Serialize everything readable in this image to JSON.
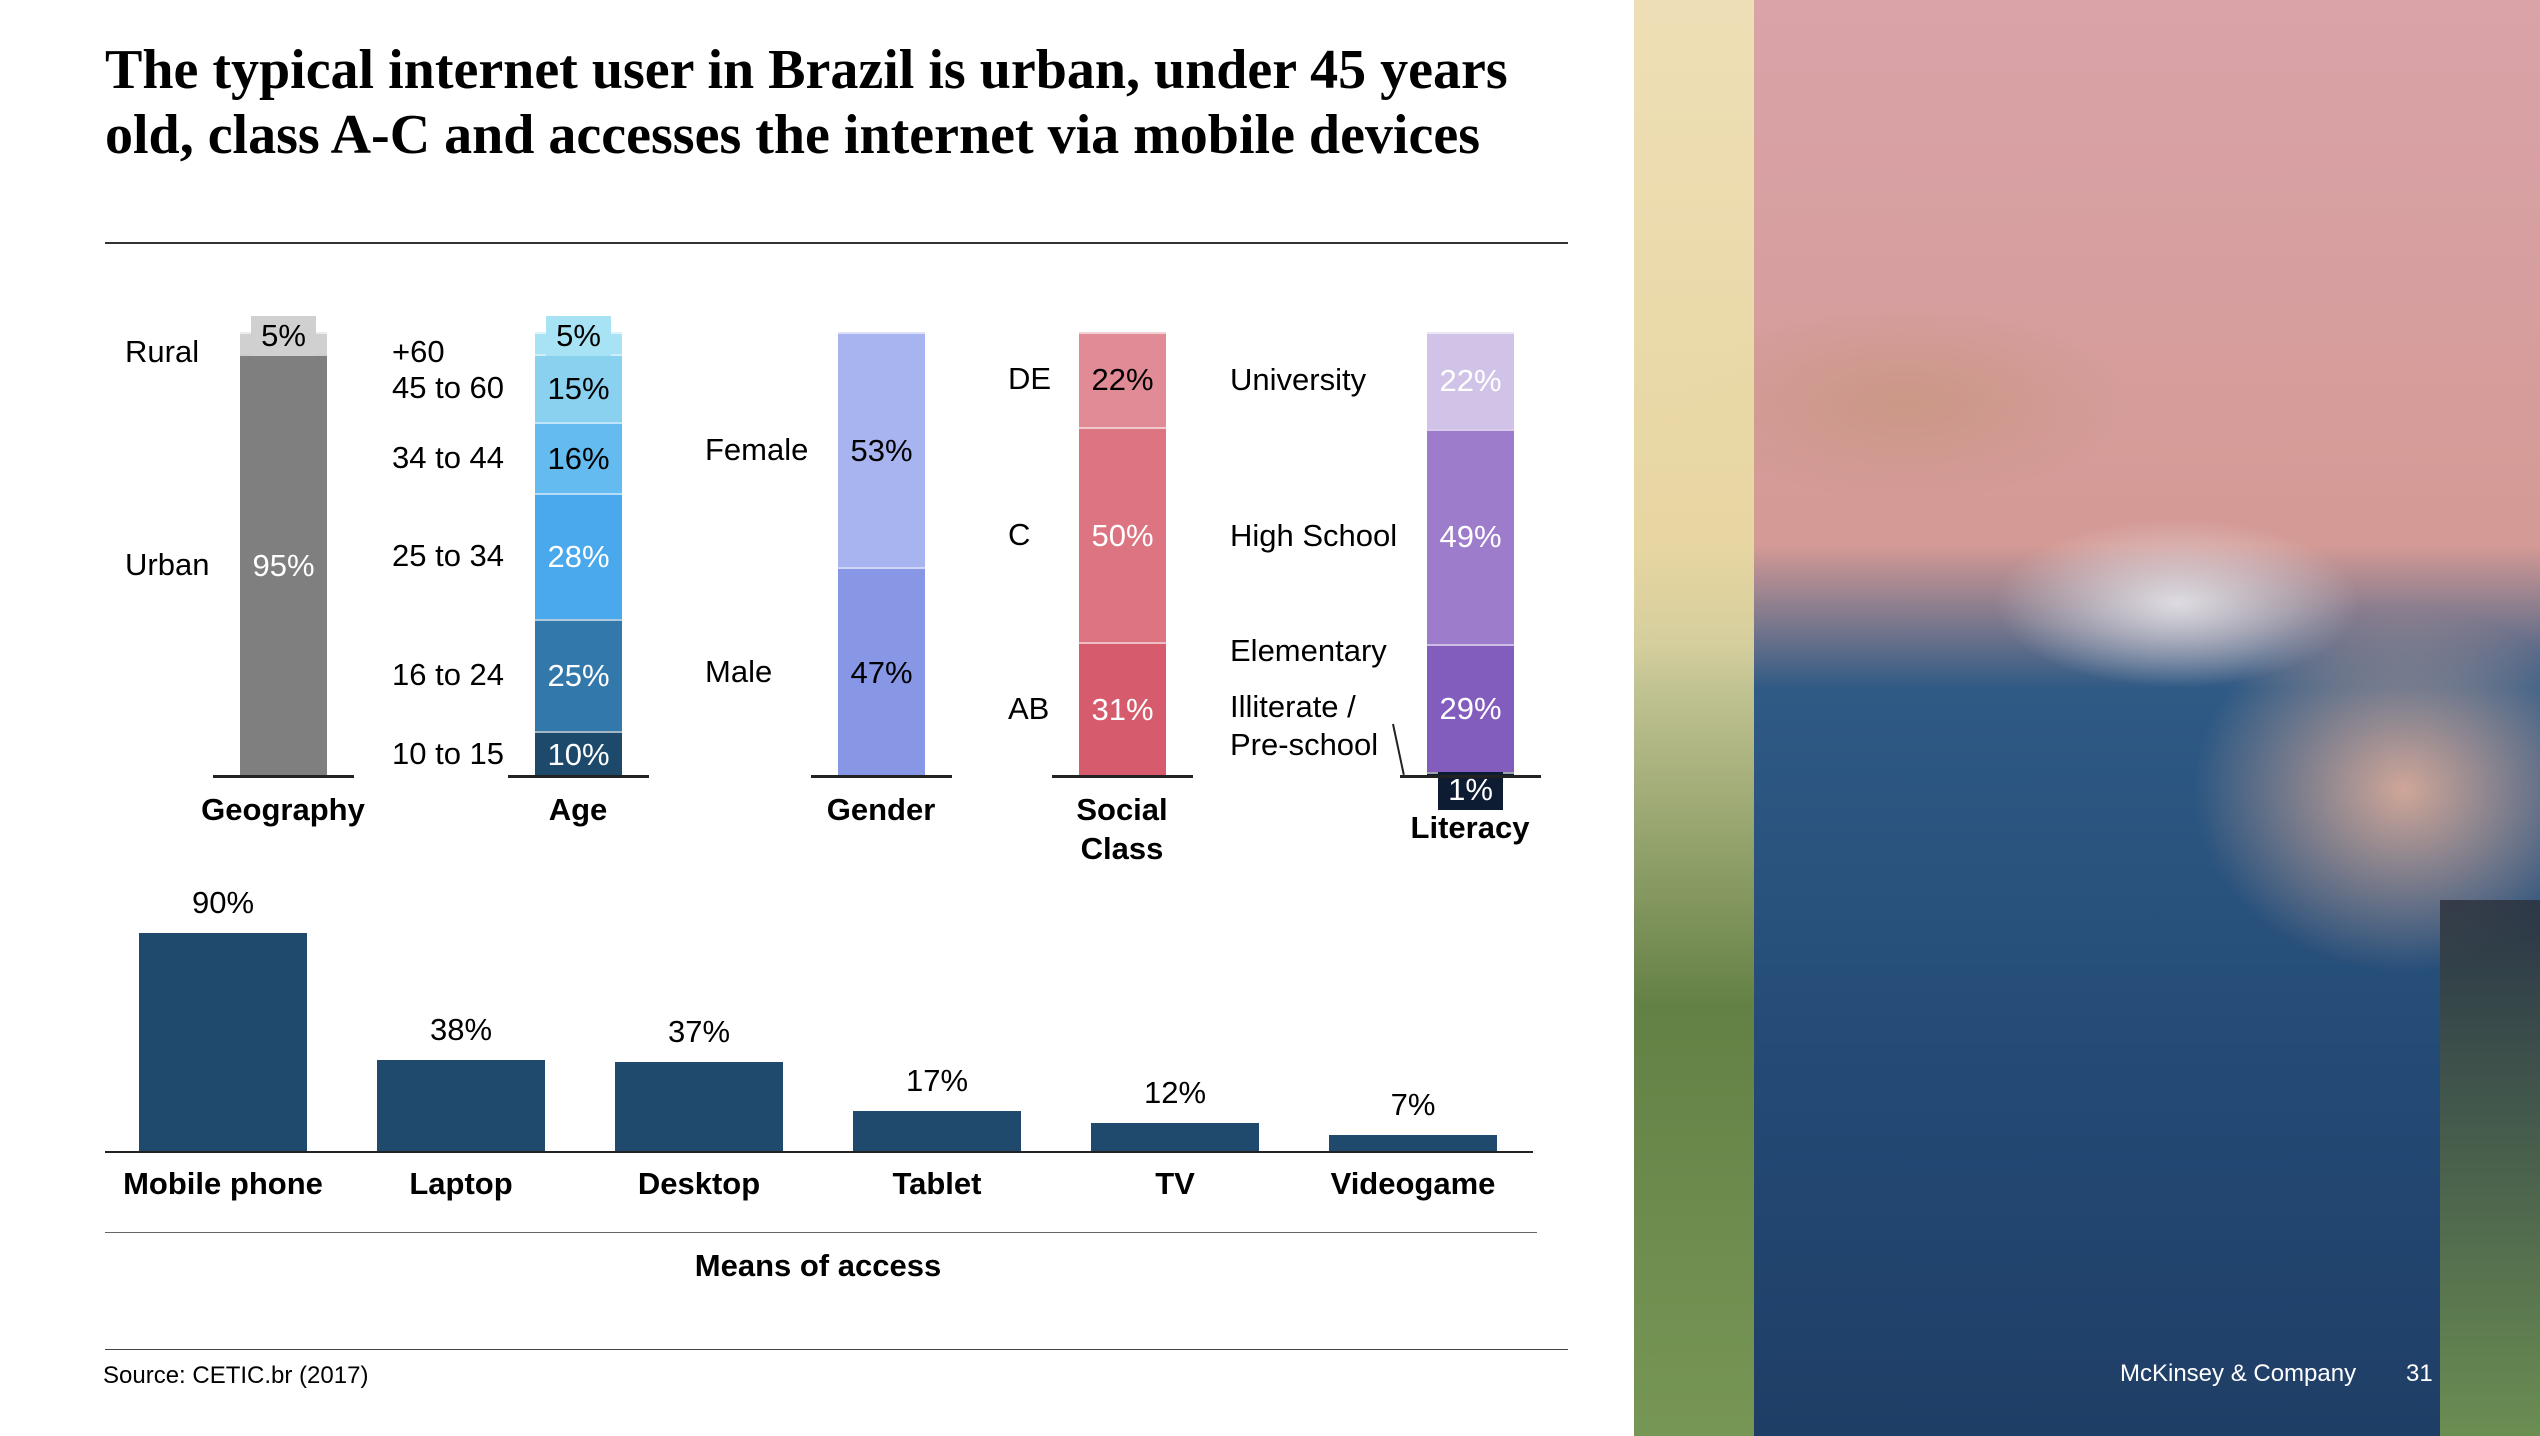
{
  "title": "The typical internet user in Brazil is urban, under 45 years old, class A-C and accesses the internet via mobile devices",
  "source": "Source: CETIC.br (2017)",
  "footer": {
    "brand": "McKinsey & Company",
    "page": "31"
  },
  "chart_data": [
    {
      "type": "bar",
      "stacked": true,
      "unit": "%",
      "groups": [
        {
          "name": "Geography",
          "segments": [
            {
              "label": "Urban",
              "value": 95,
              "color": "#7f7f7f"
            },
            {
              "label": "Rural",
              "value": 5,
              "color": "#d0d0d0"
            }
          ]
        },
        {
          "name": "Age",
          "segments": [
            {
              "label": "10 to 15",
              "value": 10,
              "color": "#1d4a6b"
            },
            {
              "label": "16 to 24",
              "value": 25,
              "color": "#3278ab"
            },
            {
              "label": "25 to 34",
              "value": 28,
              "color": "#4aa8ec"
            },
            {
              "label": "34 to 44",
              "value": 16,
              "color": "#63bbef"
            },
            {
              "label": "45 to 60",
              "value": 15,
              "color": "#8ad0ef"
            },
            {
              "label": "+60",
              "value": 5,
              "color": "#a7e3f5"
            }
          ]
        },
        {
          "name": "Gender",
          "segments": [
            {
              "label": "Male",
              "value": 47,
              "color": "#8797e6"
            },
            {
              "label": "Female",
              "value": 53,
              "color": "#a8b4ef"
            }
          ]
        },
        {
          "name": "Social Class",
          "segments": [
            {
              "label": "AB",
              "value": 31,
              "color": "#d55b6d"
            },
            {
              "label": "C",
              "value": 50,
              "color": "#dc7581"
            },
            {
              "label": "DE",
              "value": 22,
              "color": "#e08b95"
            }
          ]
        },
        {
          "name": "Literacy",
          "segments": [
            {
              "label": "Illiterate / Pre-school",
              "value": 1,
              "color": "#0e1c33"
            },
            {
              "label": "Elementary",
              "value": 29,
              "color": "#835dbe"
            },
            {
              "label": "High School",
              "value": 49,
              "color": "#9c7ccb"
            },
            {
              "label": "University",
              "value": 22,
              "color": "#d0c3e7"
            }
          ]
        }
      ]
    },
    {
      "type": "bar",
      "xlabel": "Means of access",
      "unit": "%",
      "categories": [
        "Mobile phone",
        "Laptop",
        "Desktop",
        "Tablet",
        "TV",
        "Videogame"
      ],
      "values": [
        90,
        38,
        37,
        17,
        12,
        7
      ],
      "color": "#1f4a6e",
      "ylim": [
        0,
        90
      ]
    }
  ]
}
